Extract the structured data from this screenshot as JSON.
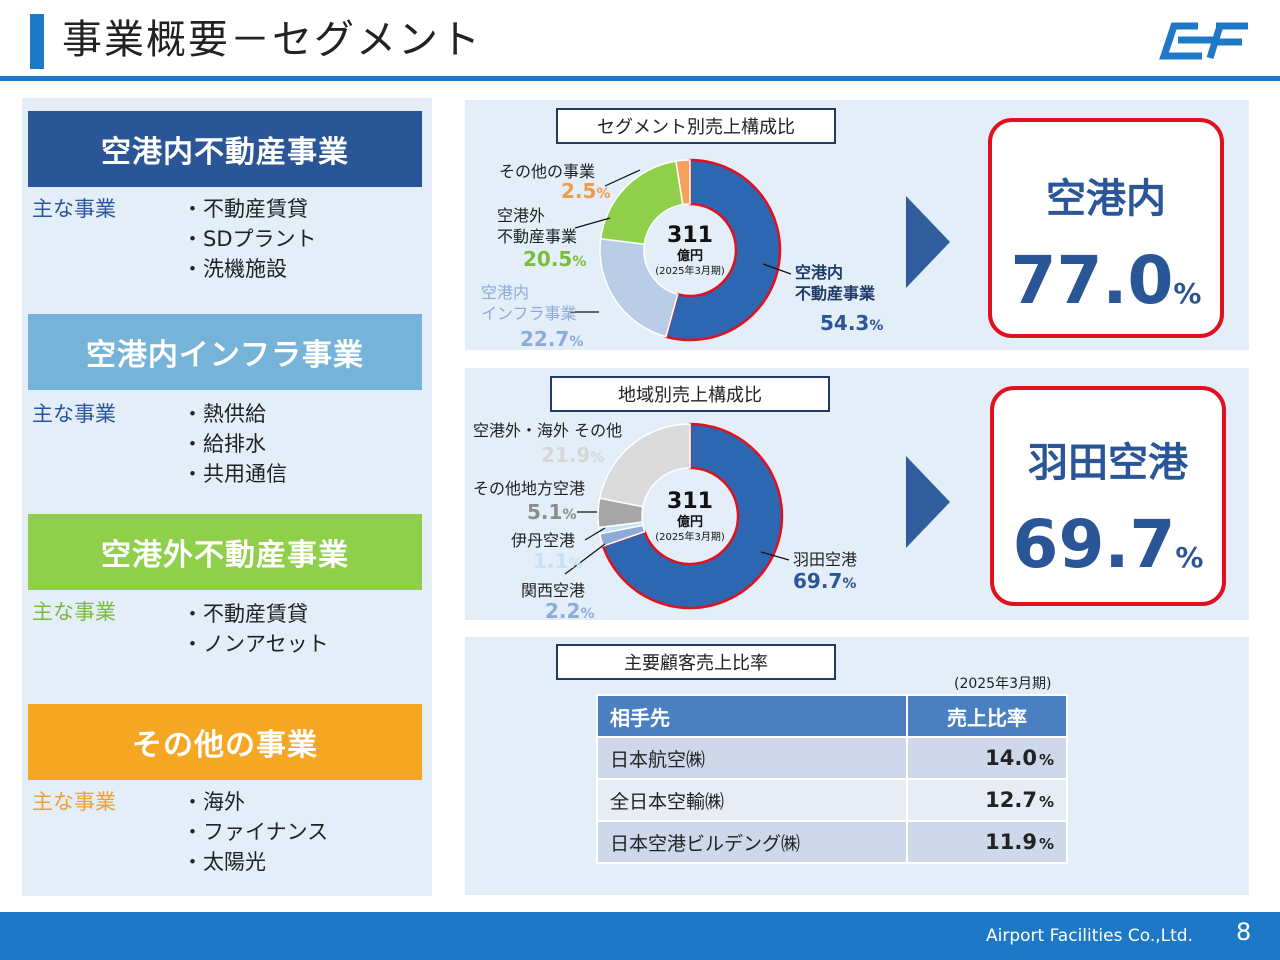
{
  "header": {
    "title": "事業概要－セグメント",
    "logo_icon": "afc-logo-icon"
  },
  "segments": [
    {
      "title": "空港内不動産事業",
      "color": "#2a5596",
      "label": "主な事業",
      "label_color": "#2a5596",
      "items": [
        "・不動産賃貸",
        "・SDプラント",
        "・洗機施設"
      ]
    },
    {
      "title": "空港内インフラ事業",
      "color": "#76b3d8",
      "label": "主な事業",
      "label_color": "#2a5596",
      "items": [
        "・熱供給",
        "・給排水",
        "・共用通信"
      ]
    },
    {
      "title": "空港外不動産事業",
      "color": "#8fcf4a",
      "label": "主な事業",
      "label_color": "#7dbb3a",
      "items": [
        "・不動産賃貸",
        "・ノンアセット"
      ]
    },
    {
      "title": "その他の事業",
      "color": "#f5a623",
      "label": "主な事業",
      "label_color": "#f0a030",
      "items": [
        "・海外",
        "・ファイナンス",
        "・太陽光"
      ]
    }
  ],
  "chart_data": [
    {
      "type": "pie",
      "title": "セグメント別売上構成比",
      "center": {
        "value": "311",
        "unit": "億円",
        "period": "(2025年3月期)"
      },
      "slices": [
        {
          "label": "空港内不動産事業",
          "value": 54.3,
          "value_text": "54.3",
          "color": "#2e67b1"
        },
        {
          "label": "空港内インフラ事業",
          "value": 22.7,
          "value_text": "22.7",
          "color": "#b9cde6"
        },
        {
          "label": "空港外不動産事業",
          "value": 20.5,
          "value_text": "20.5",
          "color": "#8fcf4a"
        },
        {
          "label": "その他の事業",
          "value": 2.5,
          "value_text": "2.5",
          "color": "#f4a15d"
        }
      ],
      "callout": {
        "label": "空港内",
        "value": "77.0",
        "unit": "%"
      }
    },
    {
      "type": "pie",
      "title": "地域別売上構成比",
      "center": {
        "value": "311",
        "unit": "億円",
        "period": "(2025年3月期)"
      },
      "slices": [
        {
          "label": "羽田空港",
          "value": 69.7,
          "value_text": "69.7",
          "color": "#2e67b1"
        },
        {
          "label": "関西空港",
          "value": 2.2,
          "value_text": "2.2",
          "color": "#8eaad8"
        },
        {
          "label": "伊丹空港",
          "value": 1.1,
          "value_text": "1.1",
          "color": "#c5e1f3"
        },
        {
          "label": "その他地方空港",
          "value": 5.1,
          "value_text": "5.1",
          "color": "#a6a6a6"
        },
        {
          "label": "空港外・海外 その他",
          "value": 21.9,
          "value_text": "21.9",
          "color": "#dadada"
        }
      ],
      "callout": {
        "label": "羽田空港",
        "value": "69.7",
        "unit": "%"
      }
    },
    {
      "type": "table",
      "title": "主要顧客売上比率",
      "period": "(2025年3月期)",
      "columns": [
        "相手先",
        "売上比率"
      ],
      "rows": [
        {
          "name": "日本航空㈱",
          "value": 14.0,
          "value_text": "14.0"
        },
        {
          "name": "全日本空輸㈱",
          "value": 12.7,
          "value_text": "12.7"
        },
        {
          "name": "日本空港ビルデング㈱",
          "value": 11.9,
          "value_text": "11.9"
        }
      ]
    }
  ],
  "percent_sign": "%",
  "footer": {
    "company": "Airport Facilities Co.,Ltd.",
    "page": "8"
  }
}
